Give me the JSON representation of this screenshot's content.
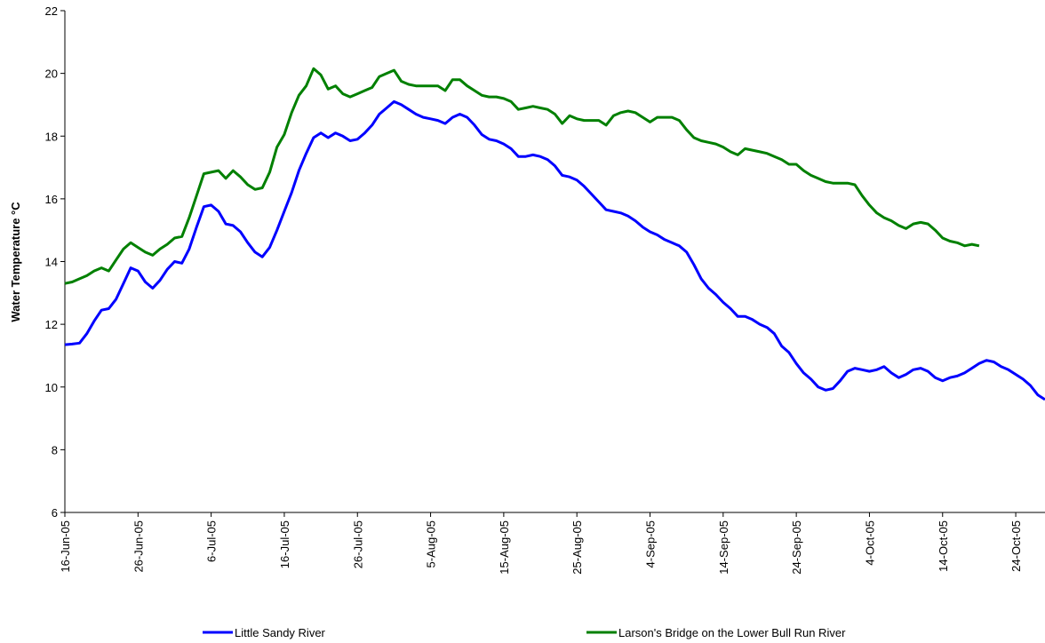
{
  "chart_data": {
    "type": "line",
    "y_label": "Water Temperature °C",
    "legend": "bottom",
    "xlim": [
      "2005-06-16",
      "2005-10-28"
    ],
    "ylim": [
      6,
      22
    ],
    "yticks": [
      6,
      8,
      10,
      12,
      14,
      16,
      18,
      20,
      22
    ],
    "xticks": [
      {
        "value": "2005-06-16",
        "label": "16-Jun-05"
      },
      {
        "value": "2005-06-26",
        "label": "26-Jun-05"
      },
      {
        "value": "2005-07-06",
        "label": "6-Jul-05"
      },
      {
        "value": "2005-07-16",
        "label": "16-Jul-05"
      },
      {
        "value": "2005-07-26",
        "label": "26-Jul-05"
      },
      {
        "value": "2005-08-05",
        "label": "5-Aug-05"
      },
      {
        "value": "2005-08-15",
        "label": "15-Aug-05"
      },
      {
        "value": "2005-08-25",
        "label": "25-Aug-05"
      },
      {
        "value": "2005-09-04",
        "label": "4-Sep-05"
      },
      {
        "value": "2005-09-14",
        "label": "14-Sep-05"
      },
      {
        "value": "2005-09-24",
        "label": "24-Sep-05"
      },
      {
        "value": "2005-10-04",
        "label": "4-Oct-05"
      },
      {
        "value": "2005-10-14",
        "label": "14-Oct-05"
      },
      {
        "value": "2005-10-24",
        "label": "24-Oct-05"
      }
    ],
    "x": [
      "2005-06-16",
      "2005-06-17",
      "2005-06-18",
      "2005-06-19",
      "2005-06-20",
      "2005-06-21",
      "2005-06-22",
      "2005-06-23",
      "2005-06-24",
      "2005-06-25",
      "2005-06-26",
      "2005-06-27",
      "2005-06-28",
      "2005-06-29",
      "2005-06-30",
      "2005-07-01",
      "2005-07-02",
      "2005-07-03",
      "2005-07-04",
      "2005-07-05",
      "2005-07-06",
      "2005-07-07",
      "2005-07-08",
      "2005-07-09",
      "2005-07-10",
      "2005-07-11",
      "2005-07-12",
      "2005-07-13",
      "2005-07-14",
      "2005-07-15",
      "2005-07-16",
      "2005-07-17",
      "2005-07-18",
      "2005-07-19",
      "2005-07-20",
      "2005-07-21",
      "2005-07-22",
      "2005-07-23",
      "2005-07-24",
      "2005-07-25",
      "2005-07-26",
      "2005-07-27",
      "2005-07-28",
      "2005-07-29",
      "2005-07-30",
      "2005-07-31",
      "2005-08-01",
      "2005-08-02",
      "2005-08-03",
      "2005-08-04",
      "2005-08-05",
      "2005-08-06",
      "2005-08-07",
      "2005-08-08",
      "2005-08-09",
      "2005-08-10",
      "2005-08-11",
      "2005-08-12",
      "2005-08-13",
      "2005-08-14",
      "2005-08-15",
      "2005-08-16",
      "2005-08-17",
      "2005-08-18",
      "2005-08-19",
      "2005-08-20",
      "2005-08-21",
      "2005-08-22",
      "2005-08-23",
      "2005-08-24",
      "2005-08-25",
      "2005-08-26",
      "2005-08-27",
      "2005-08-28",
      "2005-08-29",
      "2005-08-30",
      "2005-08-31",
      "2005-09-01",
      "2005-09-02",
      "2005-09-03",
      "2005-09-04",
      "2005-09-05",
      "2005-09-06",
      "2005-09-07",
      "2005-09-08",
      "2005-09-09",
      "2005-09-10",
      "2005-09-11",
      "2005-09-12",
      "2005-09-13",
      "2005-09-14",
      "2005-09-15",
      "2005-09-16",
      "2005-09-17",
      "2005-09-18",
      "2005-09-19",
      "2005-09-20",
      "2005-09-21",
      "2005-09-22",
      "2005-09-23",
      "2005-09-24",
      "2005-09-25",
      "2005-09-26",
      "2005-09-27",
      "2005-09-28",
      "2005-09-29",
      "2005-09-30",
      "2005-10-01",
      "2005-10-02",
      "2005-10-03",
      "2005-10-04",
      "2005-10-05",
      "2005-10-06",
      "2005-10-07",
      "2005-10-08",
      "2005-10-09",
      "2005-10-10",
      "2005-10-11",
      "2005-10-12",
      "2005-10-13",
      "2005-10-14",
      "2005-10-15",
      "2005-10-16",
      "2005-10-17",
      "2005-10-18",
      "2005-10-19",
      "2005-10-20",
      "2005-10-21",
      "2005-10-22",
      "2005-10-23",
      "2005-10-24",
      "2005-10-25",
      "2005-10-26",
      "2005-10-27",
      "2005-10-28"
    ],
    "series": [
      {
        "name": "Little Sandy River",
        "color": "#0000ff",
        "values": [
          11.35,
          11.37,
          11.4,
          11.7,
          12.1,
          12.45,
          12.5,
          12.8,
          13.3,
          13.8,
          13.7,
          13.35,
          13.15,
          13.4,
          13.75,
          14.0,
          13.95,
          14.4,
          15.1,
          15.75,
          15.8,
          15.6,
          15.2,
          15.15,
          14.95,
          14.6,
          14.3,
          14.15,
          14.45,
          15.0,
          15.6,
          16.2,
          16.9,
          17.45,
          17.95,
          18.1,
          17.95,
          18.1,
          18.0,
          17.85,
          17.9,
          18.1,
          18.35,
          18.7,
          18.9,
          19.1,
          19.0,
          18.85,
          18.7,
          18.6,
          18.55,
          18.5,
          18.4,
          18.6,
          18.7,
          18.6,
          18.35,
          18.05,
          17.9,
          17.85,
          17.75,
          17.6,
          17.35,
          17.35,
          17.4,
          17.35,
          17.25,
          17.05,
          16.75,
          16.7,
          16.6,
          16.4,
          16.15,
          15.9,
          15.65,
          15.6,
          15.55,
          15.45,
          15.3,
          15.1,
          14.95,
          14.85,
          14.7,
          14.6,
          14.5,
          14.3,
          13.9,
          13.45,
          13.15,
          12.95,
          12.7,
          12.5,
          12.25,
          12.25,
          12.15,
          12.0,
          11.9,
          11.7,
          11.3,
          11.1,
          10.75,
          10.45,
          10.25,
          10.0,
          9.9,
          9.95,
          10.2,
          10.5,
          10.6,
          10.55,
          10.5,
          10.55,
          10.65,
          10.45,
          10.3,
          10.4,
          10.55,
          10.6,
          10.5,
          10.3,
          10.2,
          10.3,
          10.35,
          10.45,
          10.6,
          10.75,
          10.85,
          10.8,
          10.65,
          10.55,
          10.4,
          10.25,
          10.05,
          9.75,
          9.6
        ]
      },
      {
        "name": "Larson's Bridge on the Lower Bull Run River",
        "color": "#008000",
        "values": [
          13.3,
          13.35,
          13.45,
          13.55,
          13.7,
          13.8,
          13.7,
          14.05,
          14.4,
          14.6,
          14.45,
          14.3,
          14.2,
          14.4,
          14.55,
          14.75,
          14.8,
          15.4,
          16.1,
          16.8,
          16.85,
          16.9,
          16.65,
          16.9,
          16.7,
          16.45,
          16.3,
          16.35,
          16.85,
          17.65,
          18.05,
          18.75,
          19.3,
          19.6,
          20.15,
          19.95,
          19.5,
          19.6,
          19.35,
          19.25,
          19.35,
          19.45,
          19.55,
          19.9,
          20.0,
          20.1,
          19.75,
          19.65,
          19.6,
          19.6,
          19.6,
          19.6,
          19.45,
          19.8,
          19.8,
          19.6,
          19.45,
          19.3,
          19.25,
          19.25,
          19.2,
          19.1,
          18.85,
          18.9,
          18.95,
          18.9,
          18.85,
          18.7,
          18.4,
          18.65,
          18.55,
          18.5,
          18.5,
          18.5,
          18.35,
          18.65,
          18.75,
          18.8,
          18.75,
          18.6,
          18.45,
          18.6,
          18.6,
          18.6,
          18.5,
          18.2,
          17.95,
          17.85,
          17.8,
          17.75,
          17.65,
          17.5,
          17.4,
          17.6,
          17.55,
          17.5,
          17.45,
          17.35,
          17.25,
          17.1,
          17.1,
          16.9,
          16.75,
          16.65,
          16.55,
          16.5,
          16.5,
          16.5,
          16.45,
          16.1,
          15.8,
          15.55,
          15.4,
          15.3,
          15.15,
          15.05,
          15.2,
          15.25,
          15.2,
          15.0,
          14.75,
          14.65,
          14.6,
          14.5,
          14.55,
          14.5,
          null,
          null,
          null,
          null,
          null,
          null,
          null,
          null,
          null
        ]
      }
    ]
  }
}
